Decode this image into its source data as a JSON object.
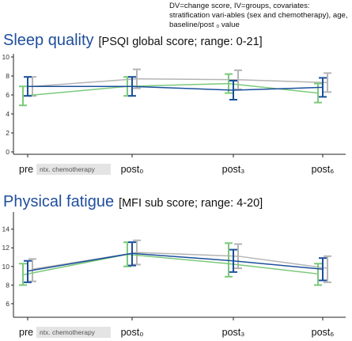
{
  "note": "DV=change score, IV=groups, covariates: stratification vari-ables (sex and chemotherapy), age, baseline/post ₀ value",
  "colors": {
    "blue": "#1b4f9c",
    "green": "#7bc97b",
    "gray": "#b4b4b4",
    "axis": "#222222",
    "tick_text": "#333333",
    "label_bg": "#e4e4e4"
  },
  "chart_data": [
    {
      "type": "line",
      "title": "Sleep quality",
      "subtitle": "[PSQI global score; range: 0-21]",
      "categories": [
        "pre",
        "post₀",
        "post₃",
        "post₆"
      ],
      "category_note": "ntx. chemotherapy",
      "yticks": [
        0,
        2,
        4,
        6,
        8,
        10
      ],
      "ylim": [
        0,
        10
      ],
      "series": [
        {
          "color": "blue",
          "values": [
            6.9,
            6.9,
            6.5,
            6.8
          ],
          "lower": [
            5.9,
            5.9,
            5.5,
            5.8
          ],
          "upper": [
            7.9,
            7.9,
            7.5,
            7.8
          ]
        },
        {
          "color": "green",
          "values": [
            5.9,
            6.9,
            7.2,
            6.2
          ],
          "lower": [
            4.9,
            5.9,
            6.2,
            5.2
          ],
          "upper": [
            6.9,
            7.9,
            8.2,
            7.2
          ]
        },
        {
          "color": "gray",
          "values": [
            6.9,
            7.7,
            7.6,
            7.3
          ],
          "lower": [
            5.9,
            6.7,
            6.6,
            6.3
          ],
          "upper": [
            7.9,
            8.7,
            8.6,
            8.3
          ]
        }
      ]
    },
    {
      "type": "line",
      "title": "Physical fatigue",
      "subtitle": "[MFI sub score; range: 4-20]",
      "categories": [
        "pre",
        "post₀",
        "post₃",
        "post₆"
      ],
      "category_note": "ntx. chemotherapy",
      "yticks": [
        6,
        8,
        10,
        12,
        14
      ],
      "ylim": [
        4.8,
        15.5
      ],
      "series": [
        {
          "color": "blue",
          "values": [
            9.5,
            11.4,
            10.6,
            9.7
          ],
          "lower": [
            8.3,
            10.1,
            9.4,
            8.5
          ],
          "upper": [
            10.6,
            12.6,
            11.8,
            10.9
          ]
        },
        {
          "color": "green",
          "values": [
            9.1,
            11.3,
            10.3,
            9.2
          ],
          "lower": [
            8.0,
            10.0,
            8.9,
            8.0
          ],
          "upper": [
            10.3,
            12.6,
            12.5,
            10.3
          ]
        },
        {
          "color": "gray",
          "values": [
            9.7,
            11.5,
            11.1,
            9.8
          ],
          "lower": [
            8.4,
            10.2,
            9.8,
            8.3
          ],
          "upper": [
            10.8,
            12.8,
            12.4,
            11.1
          ]
        }
      ]
    }
  ]
}
